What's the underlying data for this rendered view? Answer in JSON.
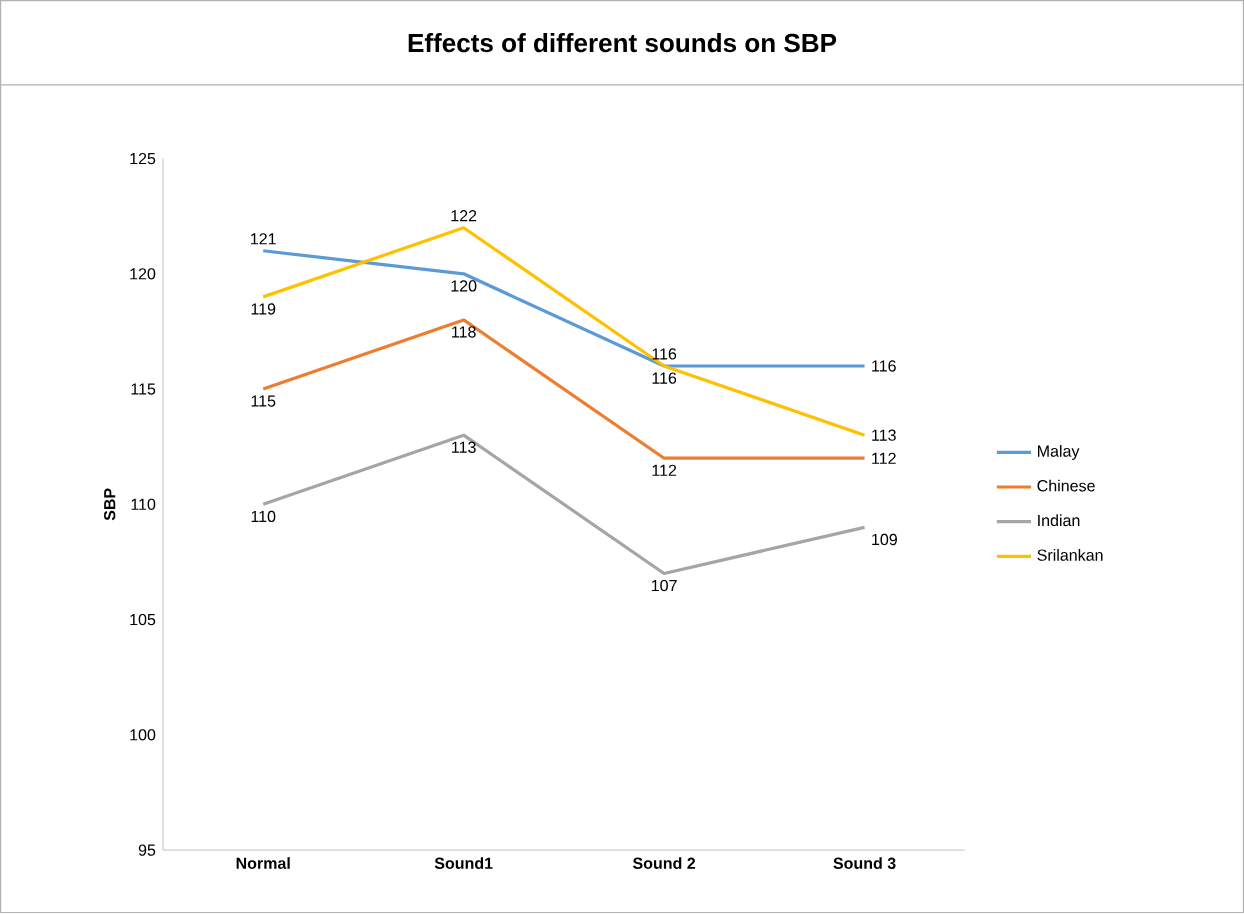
{
  "chart_data": {
    "type": "line",
    "title": "Effects of different sounds on SBP",
    "ylabel": "SBP",
    "categories": [
      "Normal",
      "Sound1",
      "Sound 2",
      "Sound 3"
    ],
    "series": [
      {
        "name": "Malay",
        "color": "#5b9bd5",
        "values": [
          121,
          120,
          116,
          116
        ]
      },
      {
        "name": "Chinese",
        "color": "#ed7d31",
        "values": [
          115,
          118,
          112,
          112
        ]
      },
      {
        "name": "Indian",
        "color": "#a5a5a5",
        "values": [
          110,
          113,
          107,
          109
        ]
      },
      {
        "name": "Srilankan",
        "color": "#ffc000",
        "values": [
          119,
          122,
          116,
          113
        ]
      }
    ],
    "ylim": [
      95,
      125
    ],
    "yticks": [
      95,
      100,
      105,
      110,
      115,
      120,
      125
    ],
    "data_labels": true,
    "legend": "right",
    "grid": false,
    "marker": "none"
  }
}
